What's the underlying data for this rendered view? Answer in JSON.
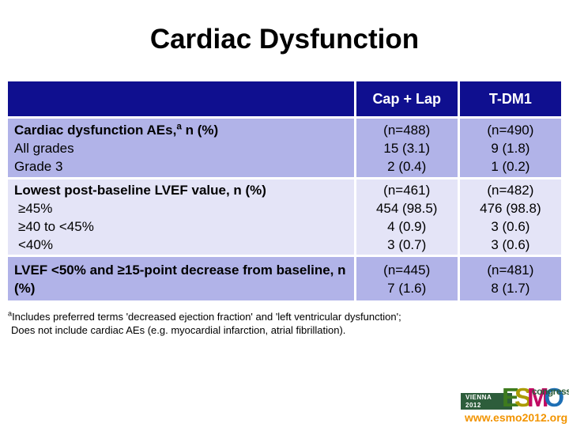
{
  "title": "Cardiac Dysfunction",
  "table": {
    "header": {
      "col1": "",
      "col2": "Cap + Lap",
      "col3": "T-DM1"
    },
    "rows": [
      {
        "label_pre": "Cardiac dysfunction AEs,",
        "label_sup": "a",
        "label_post": " n (%)",
        "sub_items": [
          "All grades",
          "Grade 3"
        ],
        "cap_lap": [
          "(n=488)",
          "15 (3.1)",
          "2 (0.4)"
        ],
        "tdm1": [
          "(n=490)",
          "9 (1.8)",
          "1 (0.2)"
        ]
      },
      {
        "label": "Lowest post-baseline LVEF value, n (%)",
        "sub_items": [
          "≥45%",
          "≥40 to <45%",
          "<40%"
        ],
        "cap_lap": [
          "(n=461)",
          "454 (98.5)",
          "4 (0.9)",
          "3 (0.7)"
        ],
        "tdm1": [
          "(n=482)",
          "476 (98.8)",
          "3 (0.6)",
          "3 (0.6)"
        ]
      },
      {
        "label": "LVEF <50% and ≥15-point decrease from baseline, n (%)",
        "cap_lap": [
          "(n=445)",
          "7 (1.6)"
        ],
        "tdm1": [
          "(n=481)",
          "8 (1.7)"
        ]
      }
    ]
  },
  "footnote": {
    "sup": "a",
    "line1": "Includes preferred terms 'decreased ejection fraction' and 'left ventricular dysfunction';",
    "line2": "Does not include cardiac AEs (e.g. myocardial infarction, atrial fibrillation)."
  },
  "logo": {
    "venue_city": "VIENNA",
    "venue_year": "2012",
    "brand_letters": [
      {
        "char": "E",
        "color": "#3e7b1e"
      },
      {
        "char": "S",
        "color": "#ab9b00"
      },
      {
        "char": "M",
        "color": "#c10a63"
      },
      {
        "char": "O",
        "color": "#1d6fb5"
      }
    ],
    "congress": "congress",
    "url": "www.esmo2012.org"
  },
  "colors": {
    "header_bg": "#0f0f8f",
    "row_medium": "#b1b3e8",
    "row_light": "#e4e4f7",
    "logo_green": "#2d5d3b",
    "url_orange": "#f29400",
    "header_text": "#ffffff",
    "body_text": "#000000"
  }
}
